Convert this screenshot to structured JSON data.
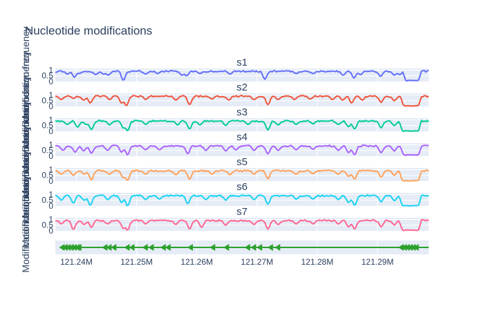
{
  "chart_data": {
    "type": "line",
    "title": "Nucleotide modifications",
    "ylabel": "Modification frequency",
    "ylim": [
      0,
      1.15
    ],
    "xlim": [
      121.2365,
      121.2985
    ],
    "x_ticks": [
      {
        "value": 121.24,
        "label": "121.24M"
      },
      {
        "value": 121.25,
        "label": "121.25M"
      },
      {
        "value": 121.26,
        "label": "121.26M"
      },
      {
        "value": 121.27,
        "label": "121.27M"
      },
      {
        "value": 121.28,
        "label": "121.28M"
      },
      {
        "value": 121.29,
        "label": "121.29M"
      }
    ],
    "y_ticks": [
      {
        "value": 0,
        "label": "0"
      },
      {
        "value": 0.5,
        "label": "0.5"
      },
      {
        "value": 1,
        "label": "1"
      }
    ],
    "baseline": 0.9,
    "grid": true,
    "series": [
      {
        "name": "s1",
        "color": "#636efa",
        "dips": [
          [
            121.2365,
            0.8
          ],
          [
            121.2385,
            0.65
          ],
          [
            121.2397,
            0.35
          ],
          [
            121.2405,
            0.7
          ],
          [
            121.2432,
            0.6
          ],
          [
            121.2445,
            0.65
          ],
          [
            121.2453,
            0.55
          ],
          [
            121.2478,
            0.1
          ],
          [
            121.2515,
            0.65
          ],
          [
            121.2535,
            0.7
          ],
          [
            121.2575,
            0.55
          ],
          [
            121.2583,
            0.5
          ],
          [
            121.2605,
            0.7
          ],
          [
            121.2655,
            0.65
          ],
          [
            121.2713,
            0.2
          ],
          [
            121.2765,
            0.7
          ],
          [
            121.2793,
            0.7
          ],
          [
            121.2843,
            0.55
          ],
          [
            121.2861,
            0.3
          ],
          [
            121.2872,
            0.6
          ],
          [
            121.2905,
            0.45
          ],
          [
            121.2928,
            0.55
          ],
          [
            121.2937,
            0.6
          ]
        ],
        "troughs": [
          [
            121.2947,
            121.2968,
            0.08
          ]
        ]
      },
      {
        "name": "s2",
        "color": "#ef553b",
        "dips": [
          [
            121.2375,
            0.6
          ],
          [
            121.2395,
            0.7
          ],
          [
            121.2412,
            0.55
          ],
          [
            121.2423,
            0.3
          ],
          [
            121.2455,
            0.6
          ],
          [
            121.2475,
            0.3
          ],
          [
            121.2483,
            0.05
          ],
          [
            121.2515,
            0.6
          ],
          [
            121.2565,
            0.55
          ],
          [
            121.2588,
            0.15
          ],
          [
            121.2625,
            0.65
          ],
          [
            121.2653,
            0.55
          ],
          [
            121.2695,
            0.6
          ],
          [
            121.2718,
            0.15
          ],
          [
            121.2735,
            0.6
          ],
          [
            121.2762,
            0.6
          ],
          [
            121.2788,
            0.65
          ],
          [
            121.2825,
            0.6
          ],
          [
            121.2842,
            0.55
          ],
          [
            121.2857,
            0.3
          ],
          [
            121.2875,
            0.55
          ],
          [
            121.2906,
            0.35
          ],
          [
            121.2928,
            0.5
          ]
        ],
        "troughs": [
          [
            121.2943,
            121.2968,
            0.05
          ]
        ]
      },
      {
        "name": "s3",
        "color": "#00cc96",
        "dips": [
          [
            121.2385,
            0.6
          ],
          [
            121.2402,
            0.35
          ],
          [
            121.2416,
            0.6
          ],
          [
            121.2425,
            0.15
          ],
          [
            121.2455,
            0.55
          ],
          [
            121.2478,
            0.3
          ],
          [
            121.2485,
            0.05
          ],
          [
            121.2515,
            0.6
          ],
          [
            121.2568,
            0.55
          ],
          [
            121.2588,
            0.2
          ],
          [
            121.2605,
            0.55
          ],
          [
            121.2648,
            0.5
          ],
          [
            121.2685,
            0.6
          ],
          [
            121.2718,
            0.1
          ],
          [
            121.2735,
            0.55
          ],
          [
            121.2765,
            0.6
          ],
          [
            121.2793,
            0.65
          ],
          [
            121.2835,
            0.6
          ],
          [
            121.2852,
            0.4
          ],
          [
            121.2862,
            0.2
          ],
          [
            121.2906,
            0.3
          ],
          [
            121.2928,
            0.5
          ]
        ],
        "troughs": [
          [
            121.2941,
            121.2968,
            0.03
          ]
        ]
      },
      {
        "name": "s4",
        "color": "#ab63fa",
        "dips": [
          [
            121.2378,
            0.5
          ],
          [
            121.2398,
            0.35
          ],
          [
            121.2412,
            0.45
          ],
          [
            121.2425,
            0.25
          ],
          [
            121.2452,
            0.5
          ],
          [
            121.2475,
            0.35
          ],
          [
            121.2485,
            0.1
          ],
          [
            121.2515,
            0.55
          ],
          [
            121.2538,
            0.55
          ],
          [
            121.2585,
            0.2
          ],
          [
            121.2615,
            0.5
          ],
          [
            121.2648,
            0.45
          ],
          [
            121.2665,
            0.55
          ],
          [
            121.2695,
            0.5
          ],
          [
            121.2718,
            0.2
          ],
          [
            121.2735,
            0.5
          ],
          [
            121.2765,
            0.55
          ],
          [
            121.2793,
            0.6
          ],
          [
            121.2835,
            0.5
          ],
          [
            121.2852,
            0.3
          ],
          [
            121.2862,
            0.1
          ],
          [
            121.2906,
            0.3
          ],
          [
            121.2928,
            0.45
          ]
        ],
        "troughs": [
          [
            121.2943,
            121.2968,
            0.1
          ]
        ]
      },
      {
        "name": "s5",
        "color": "#ffa15a",
        "dips": [
          [
            121.2375,
            0.6
          ],
          [
            121.2395,
            0.5
          ],
          [
            121.2413,
            0.6
          ],
          [
            121.2425,
            0.1
          ],
          [
            121.2455,
            0.6
          ],
          [
            121.2478,
            0.3
          ],
          [
            121.2485,
            0.05
          ],
          [
            121.2515,
            0.6
          ],
          [
            121.2565,
            0.55
          ],
          [
            121.2588,
            0.15
          ],
          [
            121.2625,
            0.6
          ],
          [
            121.2655,
            0.55
          ],
          [
            121.2695,
            0.6
          ],
          [
            121.2718,
            0.2
          ],
          [
            121.2765,
            0.6
          ],
          [
            121.2793,
            0.65
          ],
          [
            121.2835,
            0.6
          ],
          [
            121.2852,
            0.4
          ],
          [
            121.2862,
            0.15
          ],
          [
            121.2906,
            0.35
          ],
          [
            121.2928,
            0.5
          ]
        ],
        "troughs": [
          [
            121.2941,
            121.2968,
            0.03
          ]
        ]
      },
      {
        "name": "s6",
        "color": "#19d3f3",
        "dips": [
          [
            121.2375,
            0.5
          ],
          [
            121.2395,
            0.25
          ],
          [
            121.2413,
            0.5
          ],
          [
            121.2423,
            0.05
          ],
          [
            121.2452,
            0.55
          ],
          [
            121.2475,
            0.3
          ],
          [
            121.2485,
            0.0
          ],
          [
            121.2515,
            0.55
          ],
          [
            121.2538,
            0.6
          ],
          [
            121.2585,
            0.2
          ],
          [
            121.2615,
            0.55
          ],
          [
            121.2648,
            0.5
          ],
          [
            121.2695,
            0.55
          ],
          [
            121.2718,
            0.15
          ],
          [
            121.2765,
            0.6
          ],
          [
            121.2793,
            0.6
          ],
          [
            121.2835,
            0.55
          ],
          [
            121.2852,
            0.3
          ],
          [
            121.2862,
            0.05
          ],
          [
            121.2906,
            0.35
          ],
          [
            121.2928,
            0.45
          ]
        ],
        "troughs": [
          [
            121.2941,
            121.2968,
            0.02
          ]
        ]
      },
      {
        "name": "s7",
        "color": "#ff6692",
        "dips": [
          [
            121.2375,
            0.6
          ],
          [
            121.2395,
            0.1
          ],
          [
            121.2413,
            0.55
          ],
          [
            121.2425,
            0.3
          ],
          [
            121.2452,
            0.6
          ],
          [
            121.2478,
            0.2
          ],
          [
            121.2485,
            0.05
          ],
          [
            121.2515,
            0.6
          ],
          [
            121.2565,
            0.55
          ],
          [
            121.2588,
            0.15
          ],
          [
            121.2608,
            0.3
          ],
          [
            121.2648,
            0.5
          ],
          [
            121.2695,
            0.55
          ],
          [
            121.2718,
            0.15
          ],
          [
            121.2735,
            0.55
          ],
          [
            121.2765,
            0.6
          ],
          [
            121.2793,
            0.6
          ],
          [
            121.2835,
            0.6
          ],
          [
            121.2852,
            0.35
          ],
          [
            121.2862,
            0.15
          ],
          [
            121.2906,
            0.35
          ],
          [
            121.2928,
            0.5
          ]
        ],
        "troughs": [
          [
            121.2941,
            121.2968,
            0.05
          ]
        ]
      }
    ],
    "annotation_track": {
      "color": "#2ca02c",
      "span": [
        121.2375,
        121.2985
      ],
      "markers": [
        121.2377,
        121.2382,
        121.2387,
        121.2392,
        121.2397,
        121.2402,
        121.2405,
        121.2448,
        121.2455,
        121.2463,
        121.2485,
        121.2493,
        121.2515,
        121.2525,
        121.2545,
        121.2553,
        121.259,
        121.2627,
        121.265,
        121.2685,
        121.2695,
        121.2705,
        121.2723,
        121.2735,
        121.294,
        121.2945,
        121.295,
        121.2955,
        121.296,
        121.2965
      ]
    }
  }
}
